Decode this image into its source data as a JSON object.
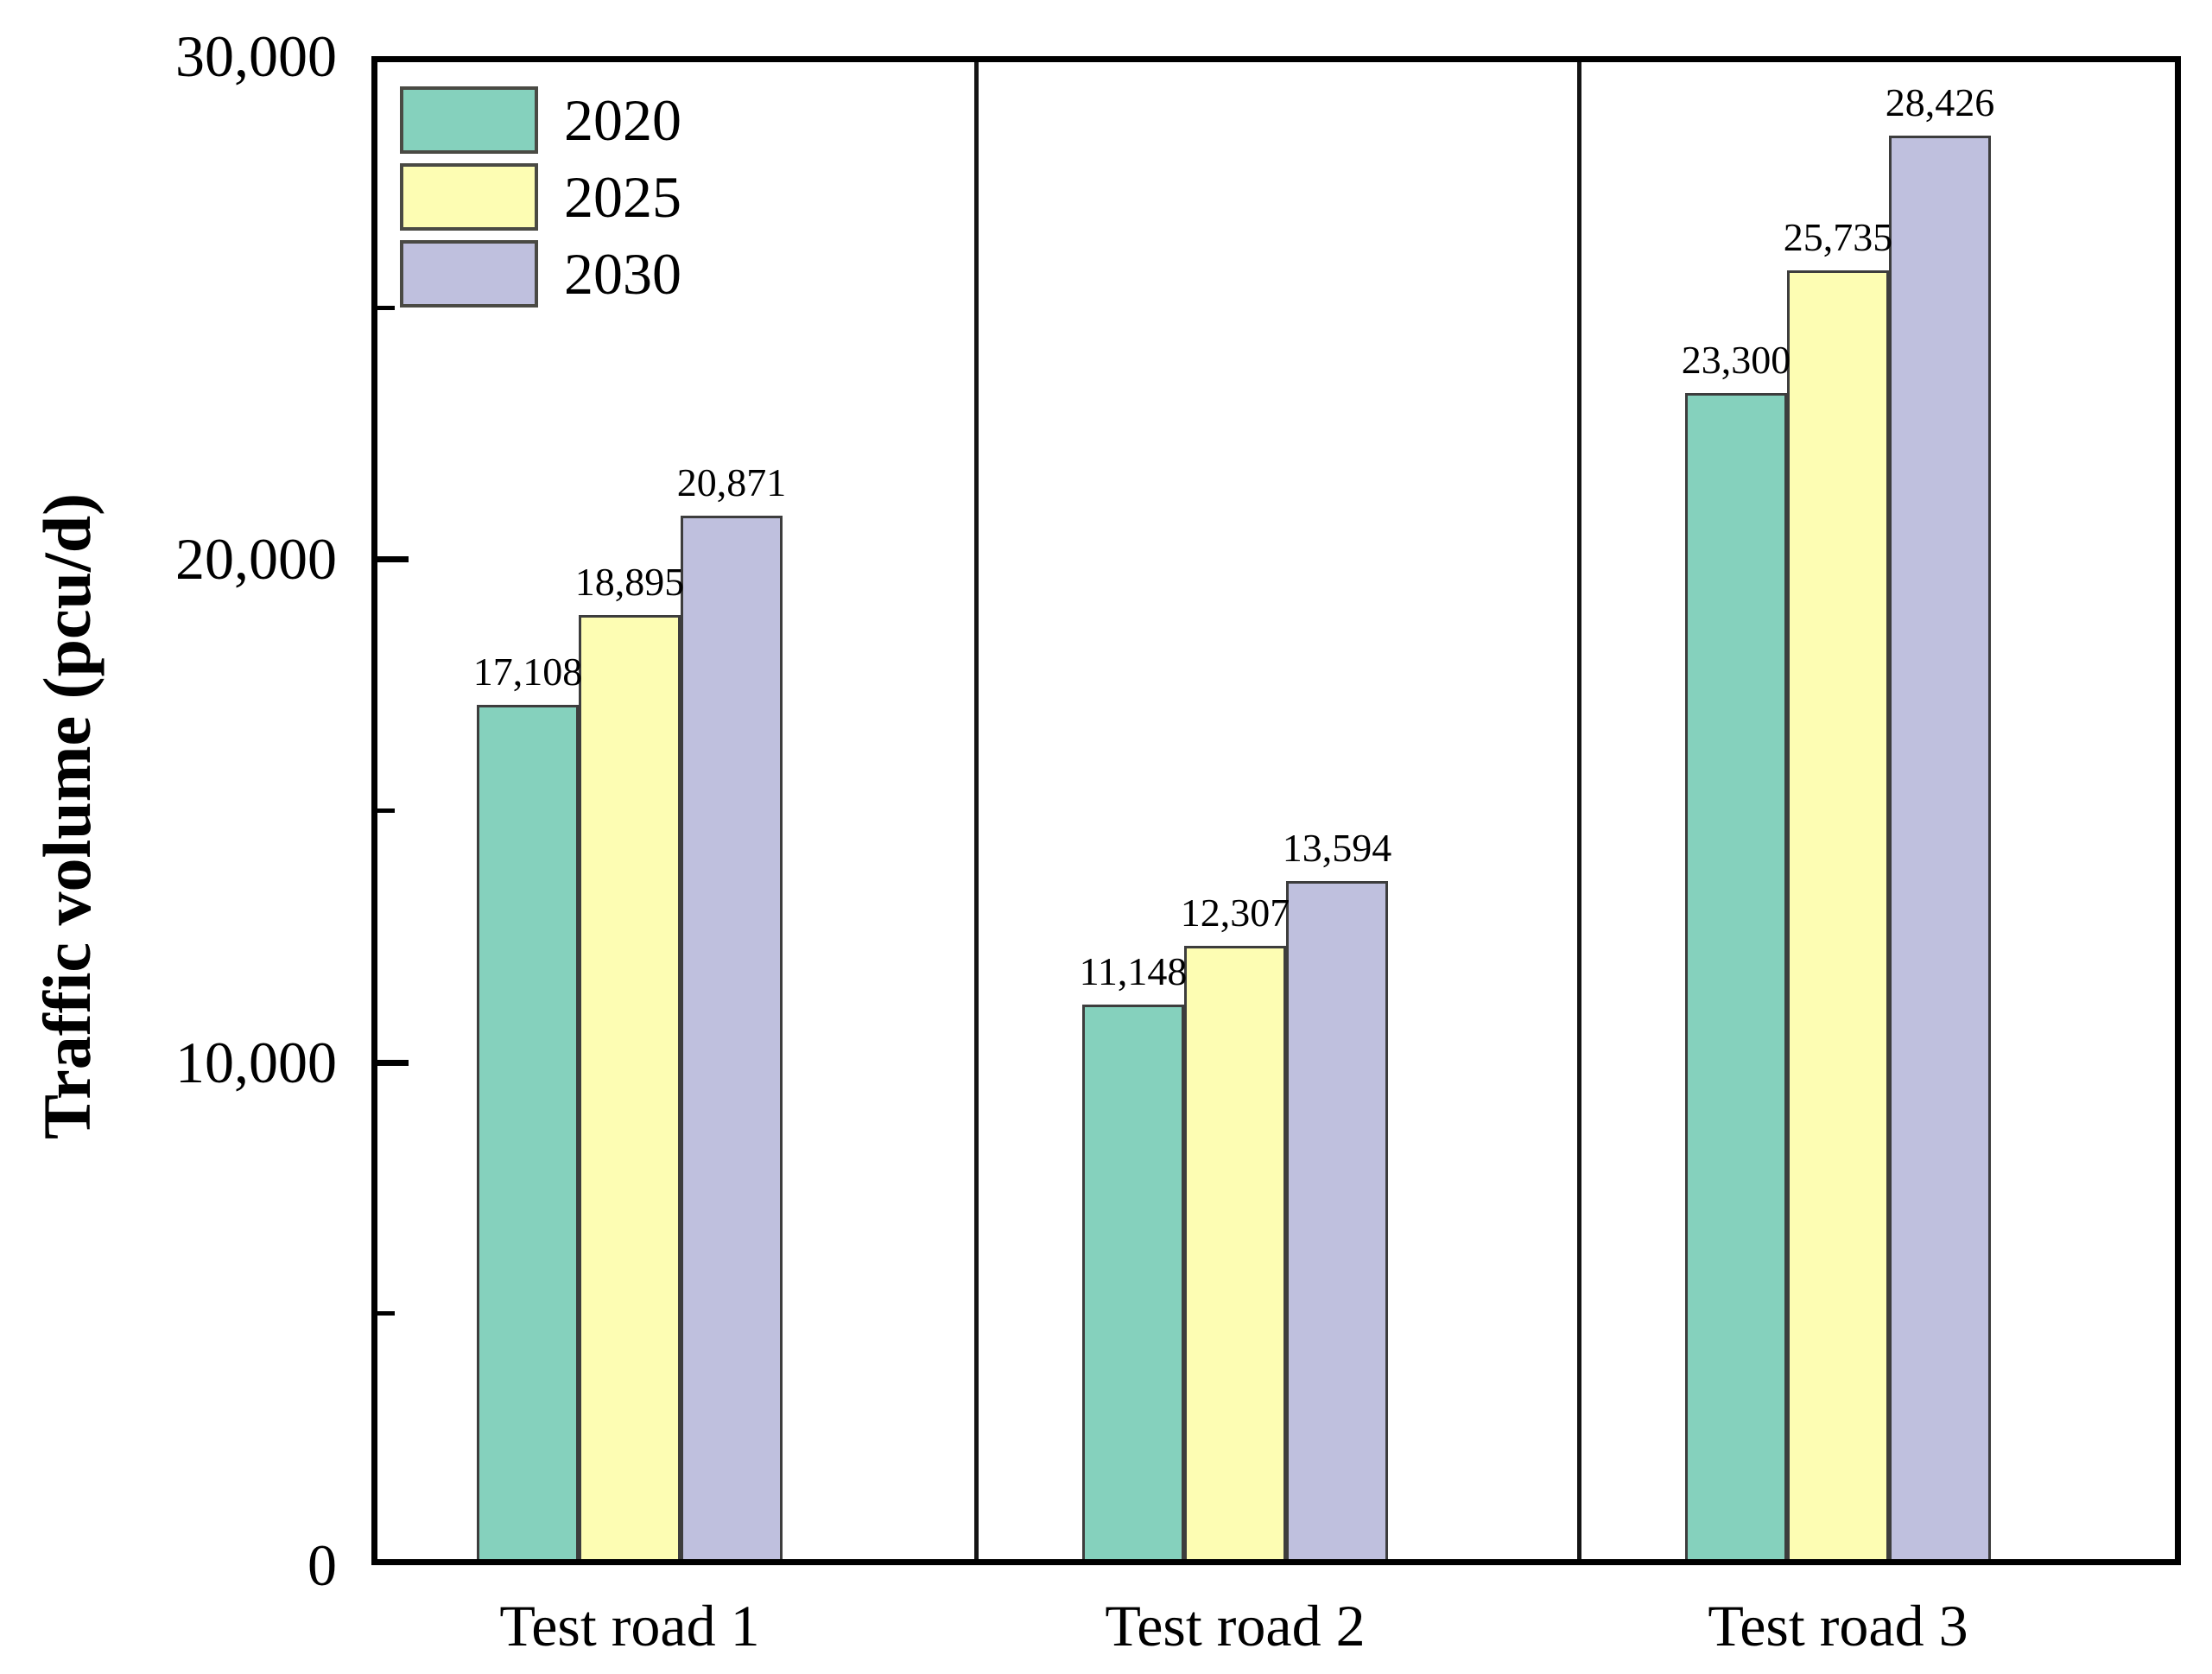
{
  "chart_data": {
    "type": "bar",
    "title": "",
    "xlabel": "",
    "ylabel": "Traffic volume (pcu/d)",
    "categories": [
      "Test road 1",
      "Test road 2",
      "Test road 3"
    ],
    "series": [
      {
        "name": "2020",
        "color": "#85d1bd",
        "values": [
          17108,
          11148,
          23300
        ],
        "labels": [
          "17,108",
          "11,148",
          "23,300"
        ]
      },
      {
        "name": "2025",
        "color": "#fdfdb3",
        "values": [
          18895,
          12307,
          25735
        ],
        "labels": [
          "18,895",
          "12,307",
          "25,735"
        ]
      },
      {
        "name": "2030",
        "color": "#bfc0de",
        "values": [
          20871,
          13594,
          28426
        ],
        "labels": [
          "20,871",
          "13,594",
          "28,426"
        ]
      }
    ],
    "ylim": [
      0,
      30000
    ],
    "yticks": [
      {
        "value": 0,
        "label": "0"
      },
      {
        "value": 10000,
        "label": "10,000"
      },
      {
        "value": 20000,
        "label": "20,000"
      },
      {
        "value": 30000,
        "label": "30,000"
      }
    ],
    "yticks_minor": [
      5000,
      15000,
      25000
    ],
    "grid": false,
    "legend_position": "top-left",
    "panel_dividers": true,
    "colors": {
      "frame": "#000000",
      "bar_edge": "#3d3d3d",
      "text": "#000000",
      "background": "#ffffff"
    }
  }
}
